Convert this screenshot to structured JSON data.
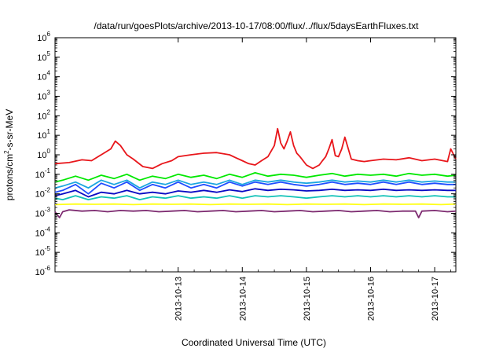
{
  "chart_data": {
    "type": "line",
    "title": "/data/run/goesPlots/archive/2013-10-17/08:00/flux/../flux/5daysEarthFluxes.txt",
    "xlabel": "Coordinated Universal Time (UTC)",
    "ylabel": "protons/cm2-s-sr-MeV",
    "ylabel_parts": {
      "pre": "protons/cm",
      "sup": "2",
      "post": "-s-sr-MeV"
    },
    "y_scale": "log",
    "ylim_exponents": [
      -6,
      6
    ],
    "y_tick_exponents": [
      -6,
      -5,
      -4,
      -3,
      -2,
      -1,
      0,
      1,
      2,
      3,
      4,
      5,
      6
    ],
    "y_tick_base": "10",
    "x_range_days": [
      "2013-10-12T02:00",
      "2013-10-17T08:00"
    ],
    "x_ticks": [
      "2013-10-13",
      "2013-10-14",
      "2013-10-15",
      "2013-10-16",
      "2013-10-17"
    ],
    "x_tick_days": [
      1.0,
      2.0,
      3.0,
      4.0,
      5.0
    ],
    "x_start_offset_days": -0.92,
    "x_end_offset_days": 5.33,
    "grid": false,
    "legend": "none",
    "series": [
      {
        "color": "#e8161b",
        "x": [
          -0.92,
          -0.7,
          -0.5,
          -0.35,
          -0.2,
          -0.05,
          0.02,
          0.1,
          0.2,
          0.3,
          0.45,
          0.6,
          0.75,
          0.9,
          1.0,
          1.2,
          1.4,
          1.6,
          1.8,
          1.9,
          2.0,
          2.1,
          2.2,
          2.3,
          2.4,
          2.5,
          2.55,
          2.6,
          2.65,
          2.7,
          2.75,
          2.8,
          2.85,
          2.9,
          3.0,
          3.1,
          3.2,
          3.25,
          3.3,
          3.35,
          3.4,
          3.45,
          3.5,
          3.55,
          3.6,
          3.7,
          3.8,
          3.9,
          4.0,
          4.2,
          4.4,
          4.6,
          4.8,
          5.0,
          5.2,
          5.25,
          5.33
        ],
        "y": [
          0.35,
          0.4,
          0.55,
          0.5,
          1.0,
          2.0,
          5.0,
          3.0,
          1.0,
          0.6,
          0.25,
          0.2,
          0.35,
          0.5,
          0.8,
          1.0,
          1.2,
          1.3,
          1.0,
          0.7,
          0.5,
          0.35,
          0.3,
          0.5,
          0.8,
          3.0,
          22.0,
          4.0,
          2.0,
          5.0,
          15.0,
          3.0,
          1.2,
          0.8,
          0.3,
          0.2,
          0.3,
          0.5,
          0.8,
          2.0,
          6.0,
          0.9,
          0.8,
          2.0,
          8.0,
          0.6,
          0.5,
          0.45,
          0.5,
          0.6,
          0.55,
          0.7,
          0.5,
          0.6,
          0.45,
          2.0,
          0.6
        ]
      },
      {
        "color": "#00e800",
        "x": [
          -0.92,
          -0.8,
          -0.6,
          -0.4,
          -0.2,
          0.0,
          0.2,
          0.4,
          0.6,
          0.8,
          1.0,
          1.2,
          1.4,
          1.6,
          1.8,
          2.0,
          2.2,
          2.4,
          2.6,
          2.8,
          3.0,
          3.2,
          3.4,
          3.6,
          3.8,
          4.0,
          4.2,
          4.4,
          4.6,
          4.8,
          5.0,
          5.2,
          5.33
        ],
        "y": [
          0.04,
          0.05,
          0.08,
          0.05,
          0.09,
          0.06,
          0.1,
          0.05,
          0.08,
          0.06,
          0.1,
          0.07,
          0.09,
          0.06,
          0.1,
          0.07,
          0.12,
          0.08,
          0.1,
          0.09,
          0.07,
          0.09,
          0.11,
          0.08,
          0.1,
          0.09,
          0.1,
          0.08,
          0.11,
          0.09,
          0.1,
          0.08,
          0.09
        ]
      },
      {
        "color": "#1aa6e0",
        "x": [
          -0.92,
          -0.8,
          -0.6,
          -0.4,
          -0.2,
          0.0,
          0.2,
          0.4,
          0.6,
          0.8,
          1.0,
          1.2,
          1.4,
          1.6,
          1.8,
          2.0,
          2.2,
          2.4,
          2.6,
          2.8,
          3.0,
          3.2,
          3.4,
          3.6,
          3.8,
          4.0,
          4.2,
          4.4,
          4.6,
          4.8,
          5.0,
          5.2,
          5.33
        ],
        "y": [
          0.02,
          0.025,
          0.04,
          0.02,
          0.05,
          0.03,
          0.05,
          0.02,
          0.04,
          0.03,
          0.05,
          0.03,
          0.04,
          0.03,
          0.05,
          0.03,
          0.05,
          0.04,
          0.05,
          0.04,
          0.035,
          0.04,
          0.05,
          0.04,
          0.045,
          0.04,
          0.05,
          0.04,
          0.05,
          0.04,
          0.045,
          0.04,
          0.04
        ]
      },
      {
        "color": "#1f4dff",
        "x": [
          -0.92,
          -0.8,
          -0.6,
          -0.4,
          -0.2,
          0.0,
          0.2,
          0.4,
          0.6,
          0.8,
          1.0,
          1.2,
          1.4,
          1.6,
          1.8,
          2.0,
          2.2,
          2.4,
          2.6,
          2.8,
          3.0,
          3.2,
          3.4,
          3.6,
          3.8,
          4.0,
          4.2,
          4.4,
          4.6,
          4.8,
          5.0,
          5.2,
          5.33
        ],
        "y": [
          0.012,
          0.015,
          0.03,
          0.01,
          0.035,
          0.02,
          0.04,
          0.015,
          0.03,
          0.02,
          0.04,
          0.02,
          0.03,
          0.02,
          0.04,
          0.025,
          0.04,
          0.03,
          0.04,
          0.03,
          0.025,
          0.03,
          0.04,
          0.03,
          0.035,
          0.03,
          0.04,
          0.03,
          0.04,
          0.03,
          0.035,
          0.03,
          0.03
        ]
      },
      {
        "color": "#0a0ac4",
        "x": [
          -0.92,
          -0.8,
          -0.6,
          -0.4,
          -0.2,
          0.0,
          0.2,
          0.4,
          0.6,
          0.8,
          1.0,
          1.2,
          1.4,
          1.6,
          1.8,
          2.0,
          2.2,
          2.4,
          2.6,
          2.8,
          3.0,
          3.2,
          3.4,
          3.6,
          3.8,
          4.0,
          4.2,
          4.4,
          4.6,
          4.8,
          5.0,
          5.2,
          5.33
        ],
        "y": [
          0.008,
          0.01,
          0.015,
          0.007,
          0.012,
          0.01,
          0.015,
          0.01,
          0.012,
          0.01,
          0.014,
          0.012,
          0.015,
          0.012,
          0.016,
          0.013,
          0.018,
          0.015,
          0.017,
          0.016,
          0.014,
          0.015,
          0.017,
          0.015,
          0.016,
          0.015,
          0.017,
          0.015,
          0.016,
          0.015,
          0.016,
          0.015,
          0.015
        ]
      },
      {
        "color": "#11c2b8",
        "x": [
          -0.92,
          -0.8,
          -0.6,
          -0.4,
          -0.2,
          0.0,
          0.2,
          0.4,
          0.6,
          0.8,
          1.0,
          1.2,
          1.4,
          1.6,
          1.8,
          2.0,
          2.2,
          2.4,
          2.6,
          2.8,
          3.0,
          3.2,
          3.4,
          3.6,
          3.8,
          4.0,
          4.2,
          4.4,
          4.6,
          4.8,
          5.0,
          5.2,
          5.33
        ],
        "y": [
          0.006,
          0.005,
          0.008,
          0.005,
          0.007,
          0.006,
          0.008,
          0.005,
          0.007,
          0.006,
          0.008,
          0.006,
          0.007,
          0.006,
          0.008,
          0.006,
          0.008,
          0.007,
          0.008,
          0.007,
          0.006,
          0.007,
          0.008,
          0.007,
          0.008,
          0.007,
          0.008,
          0.007,
          0.008,
          0.007,
          0.008,
          0.007,
          0.007
        ]
      },
      {
        "color": "#ffff1a",
        "x": [
          -0.92,
          -0.6,
          -0.3,
          0.0,
          0.3,
          0.6,
          0.9,
          1.2,
          1.5,
          1.8,
          2.1,
          2.4,
          2.7,
          3.0,
          3.3,
          3.6,
          3.9,
          4.2,
          4.5,
          4.8,
          5.1,
          5.33
        ],
        "y": [
          0.0028,
          0.003,
          0.0029,
          0.003,
          0.0028,
          0.003,
          0.0029,
          0.003,
          0.0028,
          0.003,
          0.0029,
          0.003,
          0.0028,
          0.003,
          0.0029,
          0.003,
          0.0028,
          0.003,
          0.0029,
          0.003,
          0.0028,
          0.003
        ]
      },
      {
        "color": "#7d2a70",
        "x": [
          -0.92,
          -0.85,
          -0.8,
          -0.7,
          -0.5,
          -0.3,
          -0.1,
          0.1,
          0.3,
          0.5,
          0.7,
          0.9,
          1.1,
          1.3,
          1.5,
          1.7,
          1.9,
          2.1,
          2.3,
          2.5,
          2.7,
          2.9,
          3.1,
          3.3,
          3.5,
          3.7,
          3.9,
          4.1,
          4.3,
          4.5,
          4.7,
          4.75,
          4.8,
          5.0,
          5.2,
          5.33
        ],
        "y": [
          0.0012,
          0.0006,
          0.0012,
          0.0015,
          0.0013,
          0.0014,
          0.0012,
          0.0014,
          0.0013,
          0.0014,
          0.0012,
          0.0013,
          0.0014,
          0.0012,
          0.0013,
          0.0014,
          0.0012,
          0.0013,
          0.0014,
          0.0012,
          0.0013,
          0.0014,
          0.0012,
          0.0013,
          0.0014,
          0.0012,
          0.0013,
          0.0014,
          0.0012,
          0.0013,
          0.0013,
          0.0006,
          0.0013,
          0.0014,
          0.0012,
          0.0013
        ]
      }
    ]
  }
}
